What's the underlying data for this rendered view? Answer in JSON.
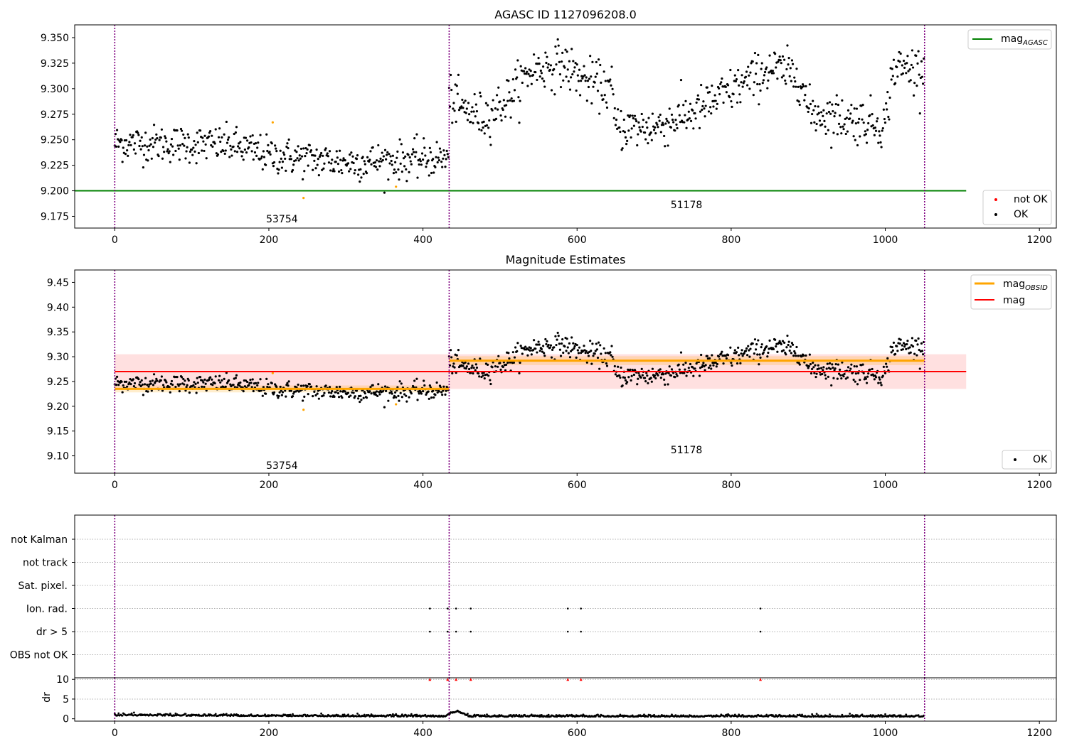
{
  "chart_data": [
    {
      "type": "scatter",
      "title": "AGASC ID 1127096208.0",
      "xlim": [
        -52,
        1222
      ],
      "ylim": [
        9.1635,
        9.3625
      ],
      "x_ticks": [
        0,
        200,
        400,
        600,
        800,
        1000,
        1200
      ],
      "y_ticks": [
        9.175,
        9.2,
        9.225,
        9.25,
        9.275,
        9.3,
        9.325,
        9.35
      ],
      "y_tick_labels": [
        "9.175",
        "9.200",
        "9.225",
        "9.250",
        "9.275",
        "9.300",
        "9.325",
        "9.350"
      ],
      "obsid_boundaries": [
        0,
        434,
        1051
      ],
      "obsid_labels": [
        {
          "text": "53754",
          "x": 217,
          "y": 9.1725
        },
        {
          "text": "51178",
          "x": 742,
          "y": 9.1865
        }
      ],
      "mag_agasc": 9.2,
      "mag_agasc_xrange": [
        -52,
        1105
      ],
      "segments": [
        {
          "x_start": 0,
          "x_end": 434,
          "trend": [
            [
              0,
              9.247
            ],
            [
              150,
              9.245
            ],
            [
              200,
              9.235
            ],
            [
              300,
              9.228
            ],
            [
              434,
              9.232
            ]
          ],
          "scatter": 0.009
        },
        {
          "x_start": 434,
          "x_end": 1051,
          "trend": [
            [
              434,
              9.292
            ],
            [
              450,
              9.28
            ],
            [
              480,
              9.272
            ],
            [
              510,
              9.29
            ],
            [
              540,
              9.318
            ],
            [
              580,
              9.325
            ],
            [
              610,
              9.308
            ],
            [
              645,
              9.3
            ],
            [
              650,
              9.262
            ],
            [
              700,
              9.262
            ],
            [
              760,
              9.28
            ],
            [
              800,
              9.298
            ],
            [
              850,
              9.32
            ],
            [
              890,
              9.312
            ],
            [
              900,
              9.278
            ],
            [
              940,
              9.272
            ],
            [
              1000,
              9.265
            ],
            [
              1010,
              9.32
            ],
            [
              1051,
              9.32
            ]
          ],
          "scatter": 0.011
        }
      ],
      "not_ok_points": [
        {
          "x": 205,
          "y": 9.267
        },
        {
          "x": 245,
          "y": 9.193
        },
        {
          "x": 365,
          "y": 9.204
        }
      ],
      "legend_upper": [
        "mag_AGASC"
      ],
      "legend_lower": [
        "not OK",
        "OK"
      ],
      "legend_placement": [
        "top-right",
        "bottom-right"
      ]
    },
    {
      "type": "scatter",
      "title": "Magnitude Estimates",
      "xlim": [
        -52,
        1222
      ],
      "ylim": [
        9.065,
        9.475
      ],
      "x_ticks": [
        0,
        200,
        400,
        600,
        800,
        1000,
        1200
      ],
      "y_ticks": [
        9.1,
        9.15,
        9.2,
        9.25,
        9.3,
        9.35,
        9.4,
        9.45
      ],
      "y_tick_labels": [
        "9.10",
        "9.15",
        "9.20",
        "9.25",
        "9.30",
        "9.35",
        "9.40",
        "9.45"
      ],
      "obsid_boundaries": [
        0,
        434,
        1051
      ],
      "obsid_labels": [
        {
          "text": "53754",
          "x": 217,
          "y": 9.081
        },
        {
          "text": "51178",
          "x": 742,
          "y": 9.112
        }
      ],
      "mag": {
        "value": 9.27,
        "band": [
          9.235,
          9.305
        ],
        "xrange": [
          0,
          1105
        ]
      },
      "mag_obsid": [
        {
          "x_range": [
            0,
            434
          ],
          "value": 9.235,
          "band": [
            9.228,
            9.242
          ]
        },
        {
          "x_range": [
            434,
            1051
          ],
          "value": 9.292,
          "band": [
            9.283,
            9.301
          ]
        }
      ],
      "not_ok_points": [
        {
          "x": 205,
          "y": 9.267
        },
        {
          "x": 245,
          "y": 9.193
        },
        {
          "x": 365,
          "y": 9.204
        }
      ],
      "legend_upper": [
        "mag_OBSID",
        "mag"
      ],
      "legend_lower": [
        "OK"
      ],
      "legend_placement": [
        "top-right",
        "bottom-right"
      ]
    },
    {
      "type": "scatter",
      "title": "",
      "xlim": [
        -52,
        1222
      ],
      "x_ticks": [
        0,
        200,
        400,
        600,
        800,
        1000,
        1200
      ],
      "flag_rows": [
        "not Kalman",
        "not track",
        "Sat. pixel.",
        "Ion. rad.",
        "dr > 5",
        "OBS not OK"
      ],
      "flag_points": {
        "Ion. rad.": [
          409,
          432,
          443,
          462,
          588,
          605,
          838
        ],
        "dr > 5": [
          409,
          432,
          443,
          462,
          588,
          605,
          838
        ]
      },
      "obsid_boundaries": [
        0,
        434,
        1051
      ]
    },
    {
      "type": "scatter",
      "title": "",
      "ylabel": "dr",
      "xlim": [
        -52,
        1222
      ],
      "ylim": [
        -0.6,
        10.4
      ],
      "x_ticks": [
        0,
        200,
        400,
        600,
        800,
        1000,
        1200
      ],
      "y_ticks": [
        0,
        5,
        10
      ],
      "y_tick_labels": [
        "0",
        "5",
        "10"
      ],
      "dr_trend": [
        [
          0,
          0.9
        ],
        [
          430,
          0.6
        ],
        [
          436,
          1.5
        ],
        [
          445,
          1.9
        ],
        [
          460,
          0.6
        ],
        [
          1051,
          0.6
        ]
      ],
      "dr_outliers_at_cap": [
        409,
        432,
        443,
        462,
        588,
        605,
        838
      ],
      "obsid_boundaries": [
        0,
        434,
        1051
      ]
    }
  ],
  "legend": {
    "mag_agasc_main": "mag",
    "mag_agasc_sub": "AGASC",
    "mag_obsid_main": "mag",
    "mag_obsid_sub": "OBSID",
    "mag": "mag",
    "not_ok": "not OK",
    "ok": "OK"
  },
  "colors": {
    "ok": "#000000",
    "not_ok_marker": "#ffa500",
    "not_ok_legend": "#ff0000",
    "mag_agasc": "#008000",
    "mag_obsid": "#ffa500",
    "mag": "#ff0000",
    "obsid_boundary": "#800080",
    "flag_grid": "#b0b0b0"
  }
}
